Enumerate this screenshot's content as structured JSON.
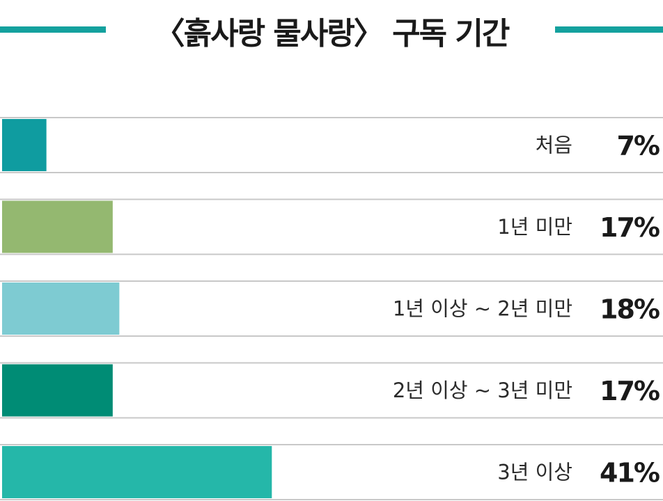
{
  "chart_data": {
    "type": "bar",
    "title": "〈흙사랑 물사랑〉 구독 기간",
    "categories": [
      "처음",
      "1년 미만",
      "1년 이상 ~ 2년 미만",
      "2년 이상 ~ 3년 미만",
      "3년 이상"
    ],
    "values": [
      7,
      17,
      18,
      17,
      41
    ],
    "value_labels": [
      "7%",
      "17%",
      "18%",
      "17%",
      "41%"
    ],
    "colors": [
      "#0f9ca0",
      "#94b870",
      "#7ecbd2",
      "#008c75",
      "#25b7a9"
    ],
    "orientation": "horizontal",
    "unit": "%",
    "legend": "none",
    "grid": false
  },
  "colors": {
    "accent": "#14a19e",
    "row_border": "#c8c8c8"
  }
}
